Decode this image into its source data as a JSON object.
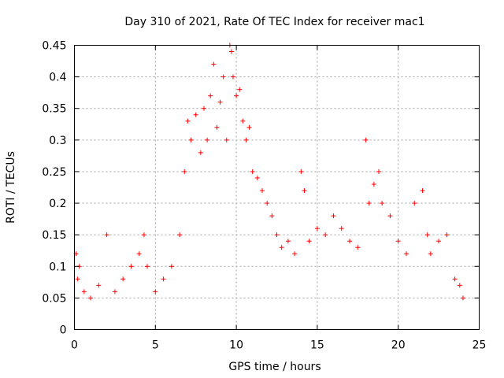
{
  "chart_data": {
    "type": "scatter",
    "title": "Day 310 of 2021, Rate Of TEC Index for receiver mac1",
    "xlabel": "GPS time / hours",
    "ylabel": "ROTI / TECUs",
    "xlim": [
      0,
      25
    ],
    "ylim": [
      0,
      0.45
    ],
    "x_ticks": [
      "0",
      "5",
      "10",
      "15",
      "20",
      "25"
    ],
    "y_ticks": [
      "0",
      "0.05",
      "0.1",
      "0.15",
      "0.2",
      "0.25",
      "0.3",
      "0.35",
      "0.4",
      "0.45"
    ],
    "grid": true,
    "marker": "+",
    "color": "#ff0000",
    "series": [
      {
        "x": [
          0.1,
          0.2,
          0.3,
          0.6,
          1.0,
          1.5,
          2.0,
          2.5,
          3.0,
          3.5,
          4.0,
          4.3,
          4.5,
          5.0,
          5.5,
          6.0,
          6.5,
          6.8,
          7.0,
          7.2,
          7.5,
          7.8,
          8.0,
          8.2,
          8.4,
          8.6,
          8.8,
          9.0,
          9.2,
          9.4,
          9.6,
          9.7,
          9.8,
          10.0,
          10.2,
          10.4,
          10.6,
          10.8,
          11.0,
          11.3,
          11.6,
          11.9,
          12.2,
          12.5,
          12.8,
          13.2,
          13.6,
          14.0,
          14.2,
          14.5,
          15.0,
          15.5,
          16.0,
          16.5,
          17.0,
          17.5,
          18.0,
          18.2,
          18.5,
          18.8,
          19.0,
          19.5,
          20.0,
          20.5,
          21.0,
          21.5,
          21.8,
          22.0,
          22.5,
          23.0,
          23.5,
          23.8,
          24.0
        ],
        "y": [
          0.12,
          0.08,
          0.1,
          0.06,
          0.05,
          0.07,
          0.15,
          0.06,
          0.08,
          0.1,
          0.12,
          0.15,
          0.1,
          0.06,
          0.08,
          0.1,
          0.15,
          0.25,
          0.33,
          0.3,
          0.34,
          0.28,
          0.35,
          0.3,
          0.37,
          0.42,
          0.32,
          0.36,
          0.4,
          0.3,
          0.45,
          0.44,
          0.4,
          0.37,
          0.38,
          0.33,
          0.3,
          0.32,
          0.25,
          0.24,
          0.22,
          0.2,
          0.18,
          0.15,
          0.13,
          0.14,
          0.12,
          0.25,
          0.22,
          0.14,
          0.16,
          0.15,
          0.18,
          0.16,
          0.14,
          0.13,
          0.3,
          0.2,
          0.23,
          0.25,
          0.2,
          0.18,
          0.14,
          0.12,
          0.2,
          0.22,
          0.15,
          0.12,
          0.14,
          0.15,
          0.08,
          0.07,
          0.05
        ]
      }
    ]
  }
}
